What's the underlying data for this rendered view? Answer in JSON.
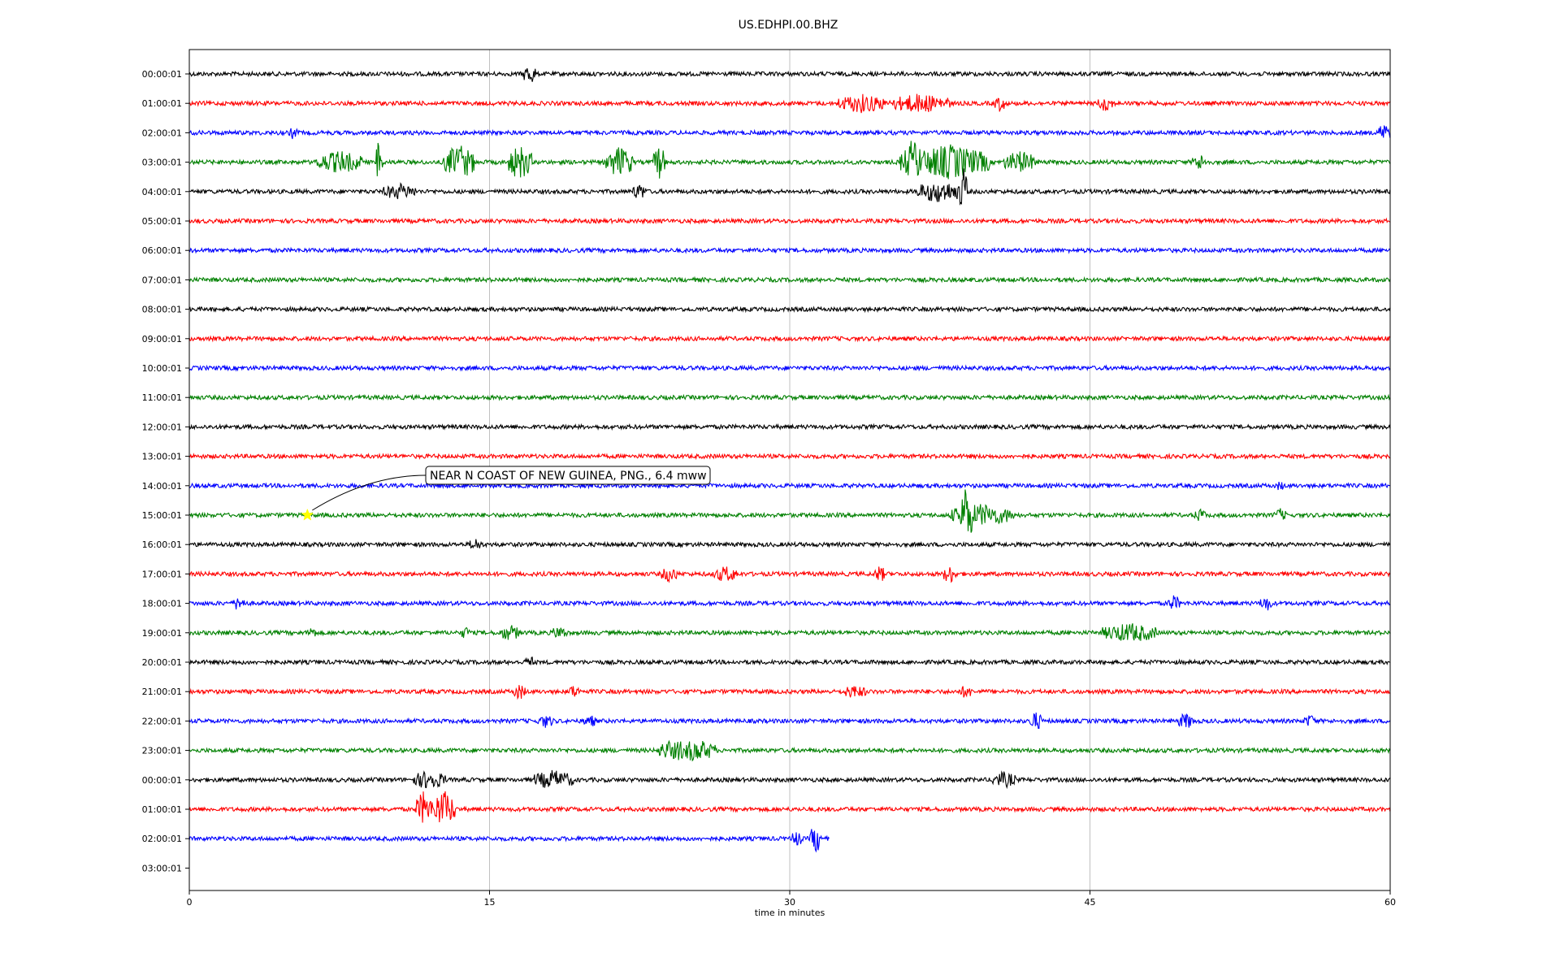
{
  "chart_data": {
    "type": "line",
    "title": "US.EDHPI.00.BHZ",
    "xlabel": "time in minutes",
    "ylabel": "",
    "xlim": [
      0,
      60
    ],
    "x_ticks": [
      0,
      15,
      30,
      45,
      60
    ],
    "grid": "vertical",
    "row_labels": [
      "00:00:01",
      "01:00:01",
      "02:00:01",
      "03:00:01",
      "04:00:01",
      "05:00:01",
      "06:00:01",
      "07:00:01",
      "08:00:01",
      "09:00:01",
      "10:00:01",
      "11:00:01",
      "12:00:01",
      "13:00:01",
      "14:00:01",
      "15:00:01",
      "16:00:01",
      "17:00:01",
      "18:00:01",
      "19:00:01",
      "20:00:01",
      "21:00:01",
      "22:00:01",
      "23:00:01",
      "00:00:01",
      "01:00:01",
      "02:00:01",
      "03:00:01"
    ],
    "trace_colors": [
      "#000000",
      "#ff0000",
      "#0000ff",
      "#008000"
    ],
    "traces": [
      {
        "row": 0,
        "end_minute": 60,
        "events": [
          {
            "t": 17.0,
            "amp": 0.6,
            "dur": 0.3
          }
        ]
      },
      {
        "row": 1,
        "end_minute": 60,
        "events": [
          {
            "t": 33.6,
            "amp": 0.5,
            "dur": 1.2
          },
          {
            "t": 36.5,
            "amp": 0.5,
            "dur": 1.5
          },
          {
            "t": 40.5,
            "amp": 0.4,
            "dur": 0.3
          },
          {
            "t": 45.8,
            "amp": 0.4,
            "dur": 0.4
          }
        ]
      },
      {
        "row": 2,
        "end_minute": 60,
        "events": [
          {
            "t": 5.2,
            "amp": 0.3,
            "dur": 0.2
          },
          {
            "t": 59.7,
            "amp": 0.5,
            "dur": 0.3
          }
        ]
      },
      {
        "row": 3,
        "end_minute": 60,
        "events": [
          {
            "t": 7.5,
            "amp": 0.6,
            "dur": 1.2
          },
          {
            "t": 9.5,
            "amp": 1.7,
            "dur": 0.15
          },
          {
            "t": 13.5,
            "amp": 1.0,
            "dur": 0.8
          },
          {
            "t": 16.5,
            "amp": 1.0,
            "dur": 0.6
          },
          {
            "t": 21.5,
            "amp": 0.9,
            "dur": 0.7
          },
          {
            "t": 23.5,
            "amp": 1.0,
            "dur": 0.3
          },
          {
            "t": 36.0,
            "amp": 0.9,
            "dur": 0.5
          },
          {
            "t": 38.0,
            "amp": 1.0,
            "dur": 2.0
          },
          {
            "t": 41.5,
            "amp": 0.6,
            "dur": 0.8
          },
          {
            "t": 50.5,
            "amp": 0.4,
            "dur": 0.4
          }
        ]
      },
      {
        "row": 4,
        "end_minute": 60,
        "events": [
          {
            "t": 10.5,
            "amp": 0.4,
            "dur": 0.8
          },
          {
            "t": 22.5,
            "amp": 0.4,
            "dur": 0.4
          },
          {
            "t": 37.5,
            "amp": 0.6,
            "dur": 1.2
          },
          {
            "t": 38.7,
            "amp": 1.3,
            "dur": 0.2
          }
        ]
      },
      {
        "row": 5,
        "end_minute": 60,
        "events": []
      },
      {
        "row": 6,
        "end_minute": 60,
        "events": []
      },
      {
        "row": 7,
        "end_minute": 60,
        "events": []
      },
      {
        "row": 8,
        "end_minute": 60,
        "events": []
      },
      {
        "row": 9,
        "end_minute": 60,
        "events": []
      },
      {
        "row": 10,
        "end_minute": 60,
        "events": []
      },
      {
        "row": 11,
        "end_minute": 60,
        "events": []
      },
      {
        "row": 12,
        "end_minute": 60,
        "events": []
      },
      {
        "row": 13,
        "end_minute": 60,
        "events": []
      },
      {
        "row": 14,
        "end_minute": 60,
        "events": [
          {
            "t": 54.5,
            "amp": 0.2,
            "dur": 0.2
          }
        ]
      },
      {
        "row": 15,
        "end_minute": 60,
        "events": [
          {
            "t": 38.8,
            "amp": 1.3,
            "dur": 0.3
          },
          {
            "t": 39.6,
            "amp": 0.6,
            "dur": 1.6
          },
          {
            "t": 50.5,
            "amp": 0.3,
            "dur": 0.3
          },
          {
            "t": 54.5,
            "amp": 0.3,
            "dur": 0.3
          }
        ]
      },
      {
        "row": 16,
        "end_minute": 60,
        "events": [
          {
            "t": 14.3,
            "amp": 0.3,
            "dur": 0.3
          }
        ]
      },
      {
        "row": 17,
        "end_minute": 60,
        "events": [
          {
            "t": 24.0,
            "amp": 0.4,
            "dur": 0.4
          },
          {
            "t": 26.8,
            "amp": 0.4,
            "dur": 0.6
          },
          {
            "t": 34.5,
            "amp": 0.4,
            "dur": 0.3
          },
          {
            "t": 38.0,
            "amp": 0.5,
            "dur": 0.3
          }
        ]
      },
      {
        "row": 18,
        "end_minute": 60,
        "events": [
          {
            "t": 2.5,
            "amp": 0.4,
            "dur": 0.3
          },
          {
            "t": 49.2,
            "amp": 0.4,
            "dur": 0.3
          },
          {
            "t": 53.8,
            "amp": 0.4,
            "dur": 0.3
          }
        ]
      },
      {
        "row": 19,
        "end_minute": 60,
        "events": [
          {
            "t": 6.1,
            "amp": 0.3,
            "dur": 0.2
          },
          {
            "t": 13.8,
            "amp": 0.3,
            "dur": 0.2
          },
          {
            "t": 16.0,
            "amp": 0.4,
            "dur": 0.5
          },
          {
            "t": 18.5,
            "amp": 0.3,
            "dur": 0.4
          },
          {
            "t": 47.0,
            "amp": 0.5,
            "dur": 1.4
          }
        ]
      },
      {
        "row": 20,
        "end_minute": 60,
        "events": [
          {
            "t": 17.0,
            "amp": 0.3,
            "dur": 0.2
          }
        ]
      },
      {
        "row": 21,
        "end_minute": 60,
        "events": [
          {
            "t": 16.5,
            "amp": 0.4,
            "dur": 0.3
          },
          {
            "t": 19.2,
            "amp": 0.3,
            "dur": 0.3
          },
          {
            "t": 33.2,
            "amp": 0.3,
            "dur": 0.6
          },
          {
            "t": 38.8,
            "amp": 0.3,
            "dur": 0.3
          }
        ]
      },
      {
        "row": 22,
        "end_minute": 60,
        "events": [
          {
            "t": 17.8,
            "amp": 0.3,
            "dur": 0.4
          },
          {
            "t": 20.0,
            "amp": 0.3,
            "dur": 0.3
          },
          {
            "t": 42.3,
            "amp": 0.5,
            "dur": 0.3
          },
          {
            "t": 49.8,
            "amp": 0.4,
            "dur": 0.4
          },
          {
            "t": 56.0,
            "amp": 0.3,
            "dur": 0.3
          }
        ]
      },
      {
        "row": 23,
        "end_minute": 60,
        "events": [
          {
            "t": 24.0,
            "amp": 0.5,
            "dur": 0.6
          },
          {
            "t": 25.3,
            "amp": 0.6,
            "dur": 1.0
          }
        ]
      },
      {
        "row": 24,
        "end_minute": 60,
        "events": [
          {
            "t": 12.0,
            "amp": 0.5,
            "dur": 0.8
          },
          {
            "t": 18.2,
            "amp": 0.5,
            "dur": 1.0
          },
          {
            "t": 40.7,
            "amp": 0.4,
            "dur": 0.6
          }
        ]
      },
      {
        "row": 25,
        "end_minute": 60,
        "events": [
          {
            "t": 11.7,
            "amp": 1.0,
            "dur": 0.4
          },
          {
            "t": 12.7,
            "amp": 1.1,
            "dur": 0.6
          }
        ]
      },
      {
        "row": 26,
        "end_minute": 32.0,
        "events": [
          {
            "t": 30.3,
            "amp": 0.4,
            "dur": 0.3
          },
          {
            "t": 31.3,
            "amp": 0.8,
            "dur": 0.3
          }
        ]
      }
    ],
    "annotation": {
      "text": "NEAR N COAST OF NEW GUINEA, PNG., 6.4 mww",
      "row": 15,
      "minute": 5.9,
      "marker": "star",
      "marker_color": "#ffff00"
    }
  }
}
